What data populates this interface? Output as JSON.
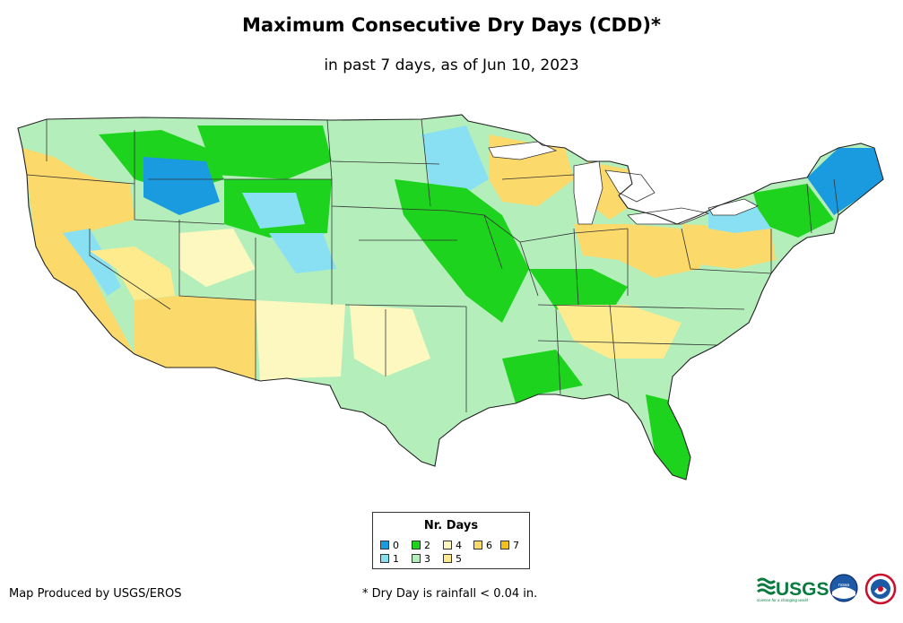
{
  "header": {
    "title": "Maximum Consecutive Dry Days (CDD)*",
    "subtitle": "in past 7 days, as of Jun 10, 2023"
  },
  "legend": {
    "title": "Nr. Days",
    "items": [
      {
        "label": "0",
        "color": "#1a9bdf"
      },
      {
        "label": "1",
        "color": "#8ae0f3"
      },
      {
        "label": "2",
        "color": "#1ed31e"
      },
      {
        "label": "3",
        "color": "#b4efbb"
      },
      {
        "label": "4",
        "color": "#fcf8c0"
      },
      {
        "label": "5",
        "color": "#fdeb8e"
      },
      {
        "label": "6",
        "color": "#fbd96a"
      },
      {
        "label": "7",
        "color": "#f6c01a"
      }
    ]
  },
  "footer": {
    "credit": "Map Produced by USGS/EROS",
    "footnote": "* Dry Day is rainfall < 0.04 in.",
    "usgs_text": "USGS",
    "usgs_tagline": "science for a changing world",
    "noaa_text": "noaa"
  },
  "colors": {
    "border": "#333333",
    "water": "#ffffff"
  }
}
